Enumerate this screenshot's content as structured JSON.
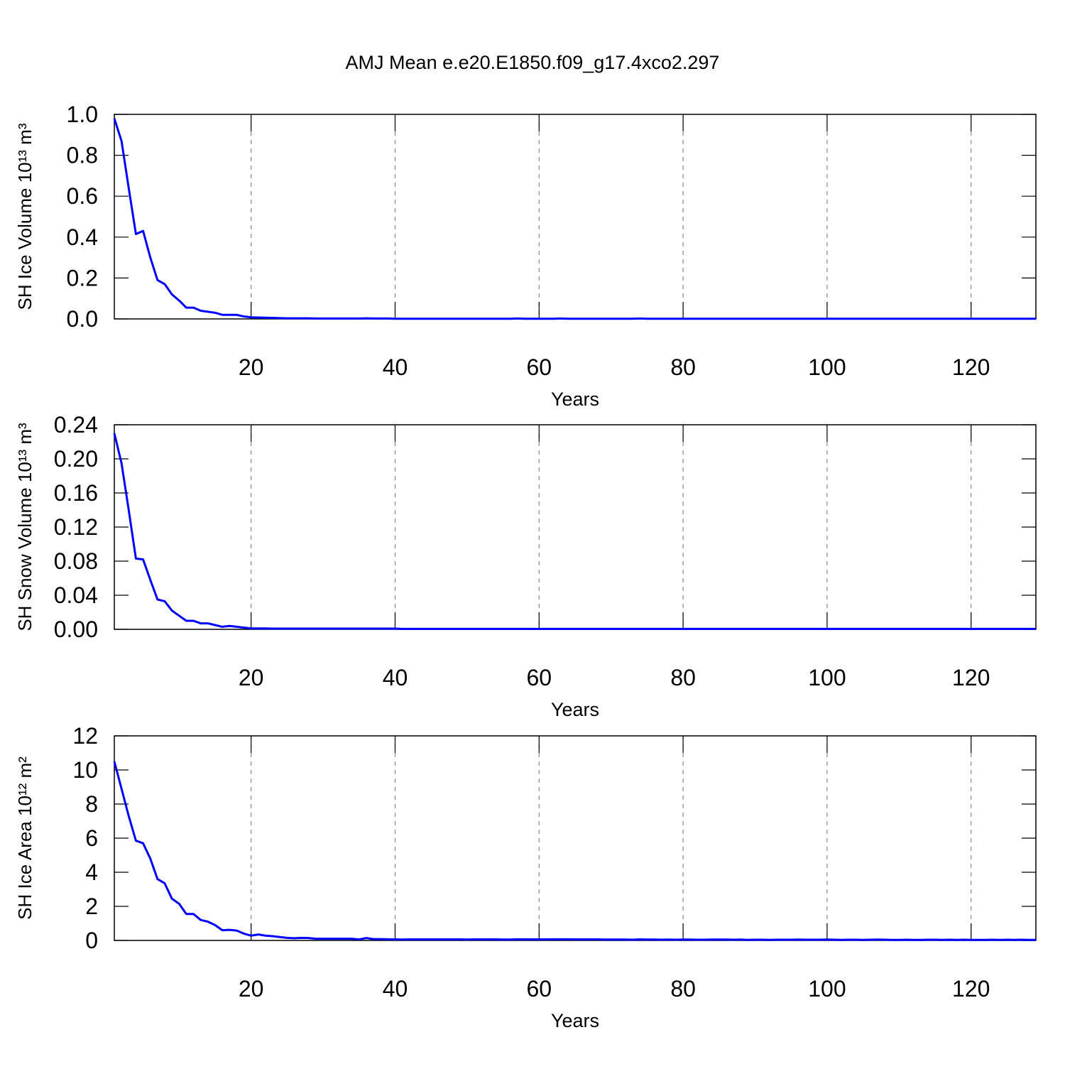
{
  "title": "AMJ Mean e.e20.E1850.f09_g17.4xco2.297",
  "chart_data": [
    {
      "type": "line",
      "ylabel": "SH Ice Volume 10¹³ m³",
      "xlabel": "Years",
      "color": "#0000ff",
      "xlim": [
        1,
        129
      ],
      "xticks": [
        20,
        40,
        60,
        80,
        100,
        120
      ],
      "grid": true,
      "ylim": [
        0,
        1
      ],
      "yticks": [
        {
          "value": 0,
          "label": "0.0"
        },
        0.2,
        0.4,
        0.6,
        0.8,
        {
          "value": 1,
          "label": "1.0"
        }
      ],
      "x": [
        1,
        2,
        3,
        4,
        5,
        6,
        7,
        8,
        9,
        10,
        11,
        12,
        13,
        14,
        15,
        16,
        17,
        18,
        19,
        20,
        21,
        22,
        23,
        24,
        25,
        26,
        27,
        28,
        29,
        30,
        31,
        32,
        33,
        34,
        35,
        36,
        37,
        38,
        39,
        40,
        41,
        42,
        43,
        44,
        45,
        46,
        47,
        48,
        49,
        50,
        51,
        52,
        53,
        54,
        55,
        56,
        57,
        58,
        59,
        60,
        61,
        62,
        63,
        64,
        65,
        66,
        67,
        68,
        69,
        70,
        71,
        72,
        73,
        74,
        75,
        76,
        77,
        78,
        79,
        80,
        81,
        82,
        83,
        84,
        85,
        86,
        87,
        88,
        89,
        90,
        91,
        92,
        93,
        94,
        95,
        96,
        97,
        98,
        99,
        100,
        101,
        102,
        103,
        104,
        105,
        106,
        107,
        108,
        109,
        110,
        111,
        112,
        113,
        114,
        115,
        116,
        117,
        118,
        119,
        120,
        121,
        122,
        123,
        124,
        125,
        126,
        127,
        128,
        129
      ],
      "values": [
        0.98,
        0.87,
        0.64,
        0.415,
        0.43,
        0.3,
        0.19,
        0.17,
        0.12,
        0.09,
        0.055,
        0.055,
        0.04,
        0.035,
        0.03,
        0.02,
        0.02,
        0.02,
        0.012,
        0.008,
        0.007,
        0.006,
        0.005,
        0.004,
        0.003,
        0.003,
        0.003,
        0.003,
        0.002,
        0.002,
        0.002,
        0.002,
        0.002,
        0.002,
        0.002,
        0.003,
        0.002,
        0.002,
        0.002,
        0.001,
        0.001,
        0.001,
        0.001,
        0.001,
        0.001,
        0.001,
        0.001,
        0.001,
        0.001,
        0.001,
        0.001,
        0.001,
        0.001,
        0.001,
        0.001,
        0.001,
        0.002,
        0.001,
        0.001,
        0.001,
        0.001,
        0.001,
        0.002,
        0.001,
        0.001,
        0.001,
        0.001,
        0.001,
        0.001,
        0.001,
        0.001,
        0.001,
        0.001,
        0.002,
        0.001,
        0.001,
        0.001,
        0.001,
        0.001,
        0.001,
        0.001,
        0.001,
        0.001,
        0.001,
        0.001,
        0.001,
        0.001,
        0.001,
        0.001,
        0.001,
        0.001,
        0.001,
        0.001,
        0.001,
        0.001,
        0.001,
        0.001,
        0.001,
        0.001,
        0.001,
        0.001,
        0.001,
        0.001,
        0.001,
        0.001,
        0.001,
        0.001,
        0.001,
        0.001,
        0.001,
        0.001,
        0.001,
        0.001,
        0.001,
        0.001,
        0.001,
        0.001,
        0.001,
        0.001,
        0.001,
        0.001,
        0.001,
        0.001,
        0.001,
        0.001,
        0.001,
        0.001,
        0.001,
        0.001
      ]
    },
    {
      "type": "line",
      "ylabel": "SH Snow Volume 10¹³ m³",
      "xlabel": "Years",
      "color": "#0000ff",
      "xlim": [
        1,
        129
      ],
      "xticks": [
        20,
        40,
        60,
        80,
        100,
        120
      ],
      "grid": true,
      "ylim": [
        0,
        0.24
      ],
      "yticks": [
        {
          "value": 0,
          "label": "0.00"
        },
        0.04,
        0.08,
        0.12,
        0.16,
        {
          "value": 0.2,
          "label": "0.20"
        },
        0.24
      ],
      "x": [
        1,
        2,
        3,
        4,
        5,
        6,
        7,
        8,
        9,
        10,
        11,
        12,
        13,
        14,
        15,
        16,
        17,
        18,
        19,
        20,
        21,
        22,
        23,
        24,
        25,
        26,
        27,
        28,
        29,
        30,
        31,
        32,
        33,
        34,
        35,
        36,
        37,
        38,
        39,
        40,
        41,
        42,
        43,
        44,
        45,
        46,
        47,
        48,
        49,
        50,
        51,
        52,
        53,
        54,
        55,
        56,
        57,
        58,
        59,
        60,
        61,
        62,
        63,
        64,
        65,
        66,
        67,
        68,
        69,
        70,
        71,
        72,
        73,
        74,
        75,
        76,
        77,
        78,
        79,
        80,
        81,
        82,
        83,
        84,
        85,
        86,
        87,
        88,
        89,
        90,
        91,
        92,
        93,
        94,
        95,
        96,
        97,
        98,
        99,
        100,
        101,
        102,
        103,
        104,
        105,
        106,
        107,
        108,
        109,
        110,
        111,
        112,
        113,
        114,
        115,
        116,
        117,
        118,
        119,
        120,
        121,
        122,
        123,
        124,
        125,
        126,
        127,
        128,
        129
      ],
      "values": [
        0.23,
        0.195,
        0.14,
        0.083,
        0.082,
        0.058,
        0.035,
        0.033,
        0.022,
        0.016,
        0.01,
        0.01,
        0.007,
        0.007,
        0.005,
        0.003,
        0.004,
        0.003,
        0.002,
        0.001,
        0.001,
        0.001,
        0.0008,
        0.0008,
        0.0008,
        0.0008,
        0.0008,
        0.0008,
        0.0008,
        0.0008,
        0.0008,
        0.0008,
        0.0008,
        0.0008,
        0.0008,
        0.0008,
        0.0008,
        0.0008,
        0.0008,
        0.0008,
        0.0005,
        0.0005,
        0.0005,
        0.0005,
        0.0005,
        0.0005,
        0.0005,
        0.0005,
        0.0005,
        0.0005,
        0.0005,
        0.0005,
        0.0005,
        0.0005,
        0.0005,
        0.0005,
        0.0005,
        0.0005,
        0.0005,
        0.0005,
        0.0005,
        0.0005,
        0.0005,
        0.0005,
        0.0005,
        0.0005,
        0.0005,
        0.0005,
        0.0005,
        0.0005,
        0.0005,
        0.0005,
        0.0005,
        0.0005,
        0.0005,
        0.0005,
        0.0005,
        0.0005,
        0.0005,
        0.0005,
        0.0005,
        0.0005,
        0.0005,
        0.0005,
        0.0005,
        0.0005,
        0.0005,
        0.0005,
        0.0005,
        0.0005,
        0.0005,
        0.0005,
        0.0005,
        0.0005,
        0.0005,
        0.0005,
        0.0005,
        0.0005,
        0.0005,
        0.0005,
        0.0005,
        0.0005,
        0.0005,
        0.0005,
        0.0005,
        0.0005,
        0.0005,
        0.0005,
        0.0005,
        0.0005,
        0.0005,
        0.0005,
        0.0005,
        0.0005,
        0.0005,
        0.0005,
        0.0005,
        0.0005,
        0.0005,
        0.0005,
        0.0005,
        0.0005,
        0.0005,
        0.0005,
        0.0005,
        0.0005,
        0.0005,
        0.0005,
        0.0005
      ]
    },
    {
      "type": "line",
      "ylabel": "SH Ice Area 10¹² m²",
      "xlabel": "Years",
      "color": "#0000ff",
      "xlim": [
        1,
        129
      ],
      "xticks": [
        20,
        40,
        60,
        80,
        100,
        120
      ],
      "grid": true,
      "ylim": [
        0,
        12
      ],
      "yticks": [
        0,
        2,
        4,
        6,
        8,
        10,
        12
      ],
      "x": [
        1,
        2,
        3,
        4,
        5,
        6,
        7,
        8,
        9,
        10,
        11,
        12,
        13,
        14,
        15,
        16,
        17,
        18,
        19,
        20,
        21,
        22,
        23,
        24,
        25,
        26,
        27,
        28,
        29,
        30,
        31,
        32,
        33,
        34,
        35,
        36,
        37,
        38,
        39,
        40,
        41,
        42,
        43,
        44,
        45,
        46,
        47,
        48,
        49,
        50,
        51,
        52,
        53,
        54,
        55,
        56,
        57,
        58,
        59,
        60,
        61,
        62,
        63,
        64,
        65,
        66,
        67,
        68,
        69,
        70,
        71,
        72,
        73,
        74,
        75,
        76,
        77,
        78,
        79,
        80,
        81,
        82,
        83,
        84,
        85,
        86,
        87,
        88,
        89,
        90,
        91,
        92,
        93,
        94,
        95,
        96,
        97,
        98,
        99,
        100,
        101,
        102,
        103,
        104,
        105,
        106,
        107,
        108,
        109,
        110,
        111,
        112,
        113,
        114,
        115,
        116,
        117,
        118,
        119,
        120,
        121,
        122,
        123,
        124,
        125,
        126,
        127,
        128,
        129
      ],
      "values": [
        10.5,
        8.9,
        7.3,
        5.85,
        5.7,
        4.8,
        3.6,
        3.35,
        2.45,
        2.15,
        1.55,
        1.55,
        1.2,
        1.1,
        0.9,
        0.6,
        0.62,
        0.58,
        0.4,
        0.28,
        0.35,
        0.28,
        0.25,
        0.2,
        0.15,
        0.13,
        0.15,
        0.14,
        0.1,
        0.1,
        0.1,
        0.1,
        0.1,
        0.1,
        0.06,
        0.14,
        0.08,
        0.08,
        0.07,
        0.06,
        0.05,
        0.06,
        0.06,
        0.06,
        0.06,
        0.06,
        0.06,
        0.06,
        0.06,
        0.05,
        0.06,
        0.06,
        0.06,
        0.06,
        0.05,
        0.05,
        0.07,
        0.06,
        0.06,
        0.06,
        0.06,
        0.07,
        0.07,
        0.07,
        0.06,
        0.06,
        0.06,
        0.06,
        0.05,
        0.05,
        0.05,
        0.05,
        0.04,
        0.06,
        0.05,
        0.05,
        0.04,
        0.05,
        0.04,
        0.05,
        0.05,
        0.04,
        0.04,
        0.05,
        0.05,
        0.05,
        0.04,
        0.05,
        0.03,
        0.04,
        0.04,
        0.03,
        0.04,
        0.04,
        0.04,
        0.05,
        0.04,
        0.04,
        0.04,
        0.05,
        0.04,
        0.03,
        0.04,
        0.04,
        0.03,
        0.04,
        0.05,
        0.04,
        0.03,
        0.03,
        0.04,
        0.03,
        0.03,
        0.04,
        0.04,
        0.03,
        0.04,
        0.03,
        0.04,
        0.03,
        0.03,
        0.03,
        0.04,
        0.03,
        0.04,
        0.03,
        0.04,
        0.03,
        0.03
      ]
    }
  ]
}
